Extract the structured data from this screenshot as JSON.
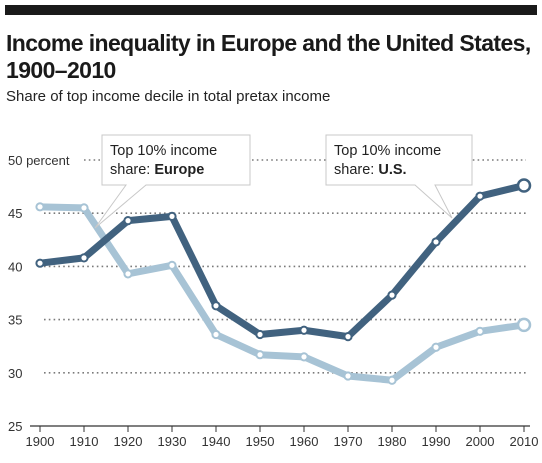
{
  "header": {
    "title": "Income inequality in Europe and the United States, 1900–2010",
    "subtitle": "Share of top income decile in total pretax income"
  },
  "colors": {
    "us": "#41627f",
    "europe": "#a7c3d5",
    "grid": "#7a7a7a",
    "axis": "#333333"
  },
  "chart_data": {
    "type": "line",
    "title": "Income inequality in Europe and the United States, 1900–2010",
    "subtitle": "Share of top income decile in total pretax income",
    "xlabel": "",
    "ylabel": "",
    "xlim": [
      1900,
      2010
    ],
    "ylim": [
      25,
      50
    ],
    "x": [
      1900,
      1910,
      1920,
      1930,
      1940,
      1950,
      1960,
      1970,
      1980,
      1990,
      2000,
      2010
    ],
    "y_ticks": [
      "25",
      "30",
      "35",
      "40",
      "45",
      "50 percent"
    ],
    "x_ticks": [
      "1900",
      "1910",
      "1920",
      "1930",
      "1940",
      "1950",
      "1960",
      "1970",
      "1980",
      "1990",
      "2000",
      "2010"
    ],
    "grid": "horizontal dotted",
    "series": [
      {
        "name": "Europe",
        "values": [
          45.6,
          45.5,
          39.3,
          40.1,
          33.6,
          31.7,
          31.5,
          29.7,
          29.3,
          32.4,
          33.9,
          34.5
        ]
      },
      {
        "name": "U.S.",
        "values": [
          40.3,
          40.8,
          44.3,
          44.7,
          36.3,
          33.6,
          34.0,
          33.4,
          37.3,
          42.3,
          46.6,
          47.6
        ]
      }
    ],
    "annotations": [
      {
        "line1": "Top 10% income",
        "line2_prefix": "share: ",
        "line2_bold": "Europe",
        "series": "Europe"
      },
      {
        "line1": "Top 10% income",
        "line2_prefix": "share: ",
        "line2_bold": "U.S.",
        "series": "U.S."
      }
    ]
  }
}
